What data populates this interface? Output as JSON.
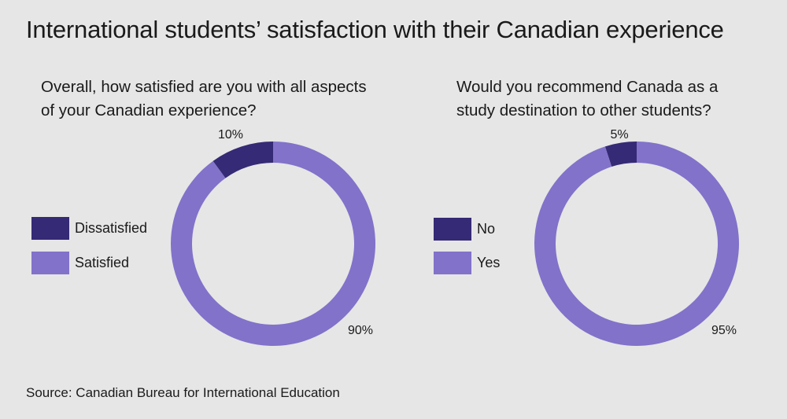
{
  "title": "International students’ satisfaction with their Canadian experience",
  "source": "Source: Canadian Bureau for International Education",
  "colors": {
    "dark": "#352a75",
    "light": "#8272ca",
    "background": "#e6e6e6"
  },
  "chart_data": [
    {
      "type": "pie",
      "title": "Overall, how satisfied are you with all aspects of your Canadian experience?",
      "title_lines": [
        "Overall, how satisfied are you with all aspects",
        "of your Canadian experience?"
      ],
      "categories": [
        "Dissatisfied",
        "Satisfied"
      ],
      "values": [
        10,
        90
      ],
      "labels": [
        "10%",
        "90%"
      ],
      "colors": [
        "#352a75",
        "#8272ca"
      ],
      "legend": "left"
    },
    {
      "type": "pie",
      "title": "Would you recommend Canada as a study destination to other students?",
      "title_lines": [
        "Would you recommend Canada as a",
        "study destination to other students?"
      ],
      "categories": [
        "No",
        "Yes"
      ],
      "values": [
        5,
        95
      ],
      "labels": [
        "5%",
        "95%"
      ],
      "colors": [
        "#352a75",
        "#8272ca"
      ],
      "legend": "left"
    }
  ]
}
